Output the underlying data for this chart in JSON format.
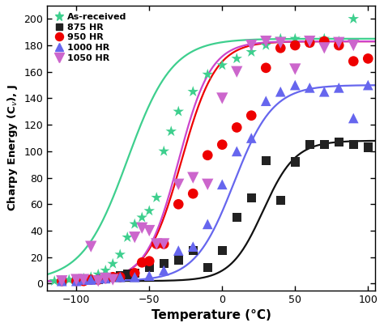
{
  "title": "",
  "xlabel": "Temperature (°C)",
  "ylabel": "Charpy Energy (C$_v$), J",
  "xlim": [
    -120,
    105
  ],
  "ylim": [
    -5,
    210
  ],
  "xticks": [
    -100,
    -50,
    0,
    50,
    100
  ],
  "yticks": [
    0,
    20,
    40,
    60,
    80,
    100,
    120,
    140,
    160,
    180,
    200
  ],
  "series": {
    "as_received": {
      "label": "As-received",
      "color": "#3ecf8e",
      "marker": "*",
      "markersize": 9,
      "curve_color": "#3ecf8e",
      "T0": -65,
      "upper": 185,
      "lower": 2,
      "k": 0.065,
      "scatter_x": [
        -115,
        -110,
        -105,
        -100,
        -95,
        -90,
        -85,
        -80,
        -75,
        -70,
        -65,
        -60,
        -55,
        -50,
        -45,
        -40,
        -35,
        -30,
        -20,
        -10,
        0,
        10,
        20,
        30,
        40,
        50,
        60,
        70,
        80,
        90
      ],
      "scatter_y": [
        2,
        2,
        3,
        3,
        4,
        5,
        7,
        10,
        15,
        22,
        35,
        45,
        50,
        55,
        65,
        100,
        115,
        130,
        145,
        158,
        165,
        170,
        175,
        180,
        185,
        185,
        182,
        185,
        183,
        200
      ]
    },
    "hr875": {
      "label": "875 HR",
      "color": "#222222",
      "marker": "s",
      "markersize": 7,
      "curve_color": "#111111",
      "T0": 28,
      "upper": 108,
      "lower": 2,
      "k": 0.09,
      "scatter_x": [
        -110,
        -100,
        -95,
        -90,
        -85,
        -80,
        -75,
        -70,
        -65,
        -60,
        -50,
        -40,
        -30,
        -20,
        -10,
        0,
        10,
        20,
        30,
        40,
        50,
        60,
        70,
        80,
        90,
        100
      ],
      "scatter_y": [
        2,
        2,
        3,
        3,
        3,
        4,
        5,
        6,
        7,
        8,
        12,
        15,
        18,
        25,
        12,
        25,
        50,
        65,
        93,
        63,
        92,
        105,
        105,
        107,
        105,
        103
      ]
    },
    "hr950": {
      "label": "950 HR",
      "color": "#ee0000",
      "marker": "o",
      "markersize": 8,
      "curve_color": "#ee0000",
      "T0": -28,
      "upper": 183,
      "lower": 2,
      "k": 0.085,
      "scatter_x": [
        -110,
        -100,
        -95,
        -90,
        -85,
        -80,
        -75,
        -70,
        -60,
        -55,
        -50,
        -45,
        -40,
        -30,
        -20,
        -10,
        0,
        10,
        20,
        30,
        40,
        50,
        60,
        70,
        80,
        90,
        100
      ],
      "scatter_y": [
        2,
        2,
        2,
        3,
        3,
        4,
        5,
        5,
        8,
        16,
        17,
        30,
        30,
        60,
        68,
        97,
        105,
        118,
        127,
        163,
        178,
        180,
        182,
        183,
        180,
        168,
        170
      ]
    },
    "hr1000": {
      "label": "1000 HR",
      "color": "#6666ee",
      "marker": "^",
      "markersize": 8,
      "curve_color": "#6666ee",
      "T0": 8,
      "upper": 150,
      "lower": 2,
      "k": 0.075,
      "scatter_x": [
        -110,
        -100,
        -95,
        -90,
        -85,
        -80,
        -70,
        -60,
        -50,
        -40,
        -30,
        -20,
        -10,
        0,
        10,
        20,
        30,
        40,
        50,
        60,
        70,
        80,
        90,
        100
      ],
      "scatter_y": [
        2,
        2,
        3,
        3,
        4,
        4,
        5,
        5,
        6,
        10,
        25,
        28,
        45,
        75,
        100,
        110,
        138,
        145,
        150,
        148,
        145,
        148,
        125,
        150
      ]
    },
    "hr1050": {
      "label": "1050 HR",
      "color": "#cc66cc",
      "marker": "v",
      "markersize": 9,
      "curve_color": "#cc44cc",
      "T0": -30,
      "upper": 183,
      "lower": 2,
      "k": 0.09,
      "scatter_x": [
        -110,
        -100,
        -95,
        -90,
        -85,
        -80,
        -75,
        -60,
        -55,
        -50,
        -45,
        -40,
        -30,
        -20,
        -10,
        0,
        10,
        20,
        30,
        40,
        50,
        60,
        70,
        80,
        90
      ],
      "scatter_y": [
        2,
        3,
        3,
        28,
        2,
        4,
        3,
        35,
        42,
        40,
        30,
        30,
        75,
        80,
        75,
        140,
        160,
        180,
        183,
        182,
        162,
        183,
        178,
        182,
        180
      ]
    }
  }
}
